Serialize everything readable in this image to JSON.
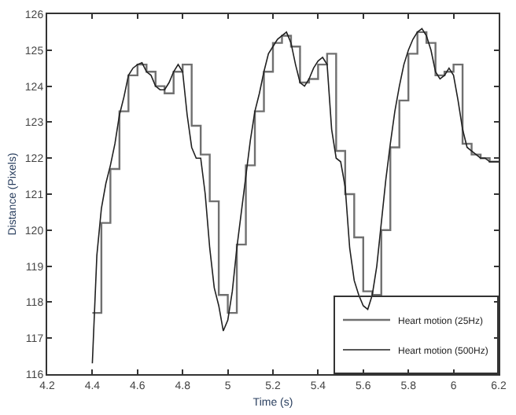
{
  "chart_data": {
    "type": "line",
    "xlabel": "Time (s)",
    "ylabel": "Distance (Pixels)",
    "xlim": [
      4.2,
      6.2
    ],
    "xticks": [
      4.2,
      4.4,
      4.6,
      4.8,
      5,
      5.2,
      5.4,
      5.6,
      5.8,
      6,
      6.2
    ],
    "ylim": [
      116,
      126
    ],
    "yticks": [
      116,
      117,
      118,
      119,
      120,
      121,
      122,
      123,
      124,
      125,
      126
    ],
    "grid": false,
    "legend": "bottom right",
    "marker": "none",
    "line_style": "solid",
    "series": [
      {
        "name": "Heart motion (25Hz)",
        "type": "step",
        "color": "#707070",
        "x": [
          4.4,
          4.44,
          4.48,
          4.52,
          4.56,
          4.6,
          4.64,
          4.68,
          4.72,
          4.76,
          4.8,
          4.84,
          4.88,
          4.92,
          4.96,
          5.0,
          5.04,
          5.08,
          5.12,
          5.16,
          5.2,
          5.24,
          5.28,
          5.32,
          5.36,
          5.4,
          5.44,
          5.48,
          5.52,
          5.56,
          5.6,
          5.64,
          5.68,
          5.72,
          5.76,
          5.8,
          5.84,
          5.88,
          5.92,
          5.96,
          6.0,
          6.04,
          6.08,
          6.12,
          6.16,
          6.2
        ],
        "values": [
          117.7,
          120.2,
          121.7,
          123.3,
          124.3,
          124.6,
          124.4,
          124.0,
          123.8,
          124.4,
          124.6,
          122.9,
          122.1,
          120.8,
          118.2,
          117.7,
          119.6,
          121.8,
          123.3,
          124.4,
          125.2,
          125.4,
          125.1,
          124.1,
          124.2,
          124.6,
          124.9,
          122.2,
          121.0,
          119.8,
          118.3,
          118.2,
          120.0,
          122.3,
          123.6,
          124.9,
          125.5,
          125.2,
          124.3,
          124.4,
          124.6,
          122.4,
          122.1,
          122.0,
          121.9,
          121.9
        ]
      },
      {
        "name": "Heart motion (500Hz)",
        "color": "#202020",
        "x": [
          4.4,
          4.42,
          4.44,
          4.46,
          4.48,
          4.5,
          4.52,
          4.54,
          4.56,
          4.58,
          4.6,
          4.62,
          4.64,
          4.66,
          4.68,
          4.7,
          4.72,
          4.74,
          4.76,
          4.78,
          4.8,
          4.82,
          4.84,
          4.86,
          4.88,
          4.9,
          4.92,
          4.94,
          4.96,
          4.98,
          5.0,
          5.02,
          5.04,
          5.06,
          5.08,
          5.1,
          5.12,
          5.14,
          5.16,
          5.18,
          5.2,
          5.22,
          5.24,
          5.26,
          5.28,
          5.3,
          5.32,
          5.34,
          5.36,
          5.38,
          5.4,
          5.42,
          5.44,
          5.46,
          5.48,
          5.5,
          5.52,
          5.54,
          5.56,
          5.58,
          5.6,
          5.62,
          5.64,
          5.66,
          5.68,
          5.7,
          5.72,
          5.74,
          5.76,
          5.78,
          5.8,
          5.82,
          5.84,
          5.86,
          5.88,
          5.9,
          5.92,
          5.94,
          5.96,
          5.98,
          6.0,
          6.02,
          6.04,
          6.06,
          6.08,
          6.1,
          6.12,
          6.14,
          6.16,
          6.18,
          6.2
        ],
        "values": [
          116.3,
          119.3,
          120.6,
          121.3,
          121.8,
          122.4,
          123.2,
          123.7,
          124.3,
          124.5,
          124.6,
          124.65,
          124.4,
          124.3,
          124.0,
          123.9,
          123.9,
          124.1,
          124.4,
          124.6,
          124.4,
          123.2,
          122.3,
          122.0,
          122.0,
          121.0,
          119.5,
          118.4,
          117.9,
          117.2,
          117.5,
          118.3,
          119.5,
          120.5,
          121.5,
          122.5,
          123.3,
          123.8,
          124.4,
          124.9,
          125.1,
          125.3,
          125.4,
          125.5,
          125.2,
          124.6,
          124.1,
          124.0,
          124.2,
          124.5,
          124.7,
          124.8,
          124.6,
          122.8,
          122.0,
          121.9,
          121.2,
          119.5,
          118.6,
          118.2,
          117.9,
          117.8,
          118.2,
          119.0,
          120.2,
          121.4,
          122.4,
          123.3,
          124.0,
          124.6,
          125.0,
          125.3,
          125.5,
          125.6,
          125.4,
          125.0,
          124.4,
          124.2,
          124.3,
          124.5,
          124.3,
          123.6,
          122.8,
          122.3,
          122.2,
          122.1,
          122.0,
          122.0,
          121.9,
          121.9,
          121.9
        ]
      }
    ]
  }
}
